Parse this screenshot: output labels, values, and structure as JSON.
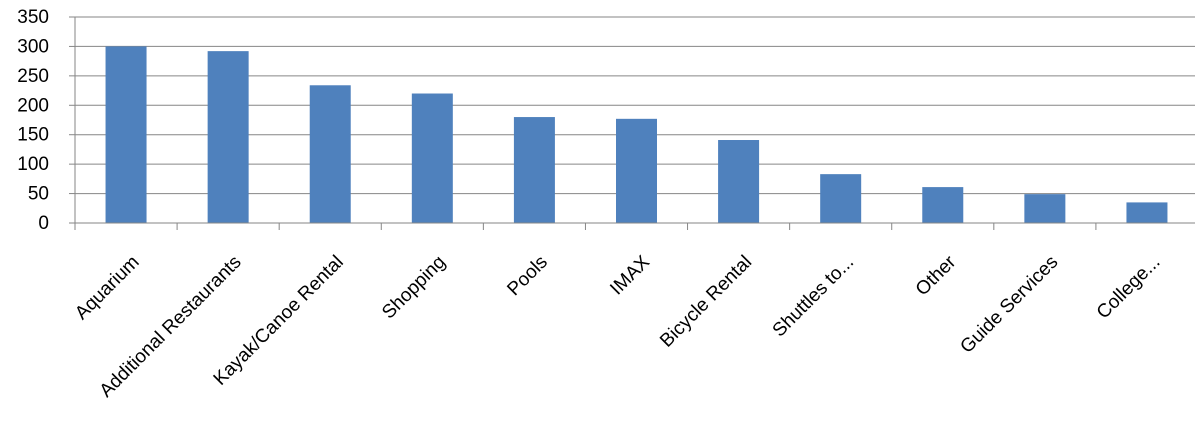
{
  "chart_data": {
    "type": "bar",
    "title": "",
    "xlabel": "",
    "ylabel": "",
    "ylim": [
      0,
      350
    ],
    "yticks": [
      0,
      50,
      100,
      150,
      200,
      250,
      300,
      350
    ],
    "grid": "horizontal",
    "legend": "none",
    "categories": [
      "Aquarium",
      "Additional Restaurants",
      "Kayak/Canoe Rental",
      "Shopping",
      "Pools",
      "IMAX",
      "Bicycle Rental",
      "Shuttles to...",
      "Other",
      "Guide Services",
      "College..."
    ],
    "values": [
      300,
      292,
      234,
      220,
      180,
      177,
      141,
      83,
      61,
      49,
      35
    ],
    "colors": {
      "bar": "#4F81BD",
      "grid": "#868686",
      "axis": "#868686"
    }
  }
}
